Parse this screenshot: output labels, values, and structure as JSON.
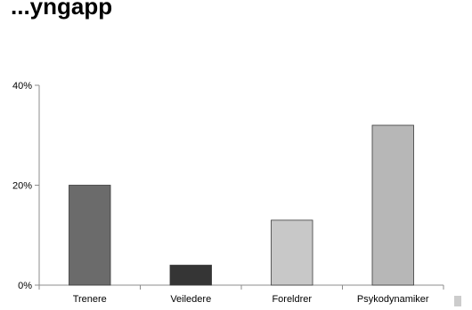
{
  "chart_data": {
    "type": "bar",
    "title": "...yngapp",
    "categories": [
      "Trenere",
      "Veiledere",
      "Foreldrer",
      "Psykodynamiker"
    ],
    "values": [
      20,
      4,
      13,
      32
    ],
    "colors": [
      "#6b6b6b",
      "#353535",
      "#c8c8c8",
      "#b7b7b7"
    ],
    "ylim": [
      0,
      40
    ],
    "yticks": [
      0,
      20,
      40
    ],
    "ytick_labels": [
      "0%",
      "20%",
      "40%"
    ],
    "xlabel": "",
    "ylabel": "",
    "grid": false,
    "legend": "none"
  }
}
